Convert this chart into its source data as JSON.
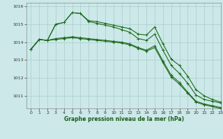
{
  "bg_color": "#cce8e8",
  "grid_color": "#aacccc",
  "line_color": "#1a6b1a",
  "title": "Graphe pression niveau de la mer (hPa)",
  "xlim": [
    -0.5,
    23
  ],
  "ylim": [
    1010.3,
    1016.2
  ],
  "yticks": [
    1011,
    1012,
    1013,
    1014,
    1015,
    1016
  ],
  "xticks": [
    0,
    1,
    2,
    3,
    4,
    5,
    6,
    7,
    8,
    9,
    10,
    11,
    12,
    13,
    14,
    15,
    16,
    17,
    18,
    19,
    20,
    21,
    22,
    23
  ],
  "series": [
    [
      1013.6,
      1014.15,
      1014.1,
      1015.0,
      1015.1,
      1015.65,
      1015.6,
      1015.2,
      1015.15,
      1015.05,
      1014.95,
      1014.85,
      1014.75,
      1014.45,
      1014.4,
      1014.85,
      1013.9,
      1013.05,
      1012.7,
      1012.1,
      1011.35,
      1011.0,
      1010.8,
      1010.65
    ],
    [
      1013.6,
      1014.15,
      1014.1,
      1015.0,
      1015.1,
      1015.65,
      1015.6,
      1015.15,
      1015.05,
      1014.95,
      1014.85,
      1014.7,
      1014.55,
      1014.2,
      1014.1,
      1014.45,
      1013.55,
      1012.7,
      1012.25,
      1011.7,
      1011.05,
      1010.8,
      1010.7,
      1010.6
    ],
    [
      1013.6,
      1014.15,
      1014.1,
      1014.2,
      1014.25,
      1014.3,
      1014.25,
      1014.2,
      1014.15,
      1014.1,
      1014.05,
      1014.0,
      1013.9,
      1013.7,
      1013.55,
      1013.8,
      1012.95,
      1012.15,
      1011.75,
      1011.2,
      1010.7,
      1010.55,
      1010.45,
      1010.35
    ],
    [
      1013.6,
      1014.15,
      1014.1,
      1014.15,
      1014.2,
      1014.25,
      1014.2,
      1014.15,
      1014.1,
      1014.05,
      1014.0,
      1013.95,
      1013.85,
      1013.65,
      1013.5,
      1013.7,
      1012.85,
      1012.05,
      1011.65,
      1011.15,
      1010.65,
      1010.5,
      1010.4,
      1010.3
    ]
  ]
}
